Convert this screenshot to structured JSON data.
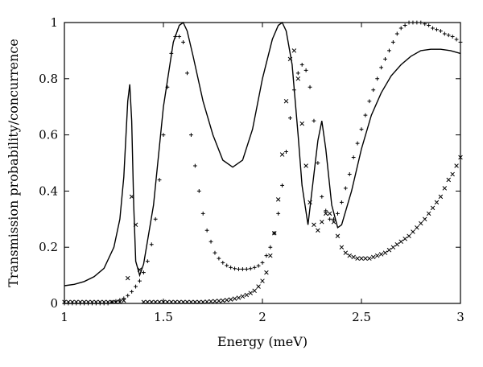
{
  "chart_data": {
    "type": "line",
    "title": "",
    "xlabel": "Energy (meV)",
    "ylabel": "Transmission probability/concurrence",
    "xlim": [
      1,
      3
    ],
    "ylim": [
      0,
      1
    ],
    "xticks": [
      "1",
      "1.5",
      "2",
      "2.5",
      "3"
    ],
    "yticks": [
      "0",
      "0.2",
      "0.4",
      "0.6",
      "0.8",
      "1"
    ],
    "grid": false,
    "legend": "none",
    "series": [
      {
        "marker": "line",
        "x": [
          1.0,
          1.05,
          1.1,
          1.15,
          1.2,
          1.25,
          1.28,
          1.3,
          1.32,
          1.33,
          1.34,
          1.35,
          1.36,
          1.38,
          1.4,
          1.45,
          1.5,
          1.55,
          1.58,
          1.6,
          1.62,
          1.65,
          1.7,
          1.75,
          1.8,
          1.85,
          1.9,
          1.95,
          2.0,
          2.05,
          2.08,
          2.1,
          2.12,
          2.15,
          2.18,
          2.2,
          2.23,
          2.25,
          2.28,
          2.3,
          2.32,
          2.35,
          2.38,
          2.4,
          2.45,
          2.5,
          2.55,
          2.6,
          2.65,
          2.7,
          2.75,
          2.8,
          2.85,
          2.9,
          2.95,
          3.0
        ],
        "y": [
          0.063,
          0.068,
          0.078,
          0.095,
          0.125,
          0.2,
          0.3,
          0.45,
          0.72,
          0.78,
          0.65,
          0.35,
          0.15,
          0.1,
          0.14,
          0.35,
          0.7,
          0.93,
          0.99,
          1.0,
          0.97,
          0.88,
          0.72,
          0.6,
          0.51,
          0.485,
          0.51,
          0.62,
          0.8,
          0.94,
          0.99,
          1.0,
          0.97,
          0.85,
          0.6,
          0.42,
          0.28,
          0.4,
          0.58,
          0.65,
          0.55,
          0.35,
          0.27,
          0.28,
          0.4,
          0.55,
          0.67,
          0.75,
          0.81,
          0.85,
          0.88,
          0.9,
          0.905,
          0.905,
          0.9,
          0.89
        ]
      },
      {
        "marker": "+",
        "x": [
          1.0,
          1.02,
          1.04,
          1.06,
          1.08,
          1.1,
          1.12,
          1.14,
          1.16,
          1.18,
          1.2,
          1.22,
          1.24,
          1.26,
          1.28,
          1.3,
          1.32,
          1.34,
          1.36,
          1.38,
          1.4,
          1.42,
          1.44,
          1.46,
          1.48,
          1.5,
          1.52,
          1.54,
          1.56,
          1.58,
          1.6,
          1.62,
          1.64,
          1.66,
          1.68,
          1.7,
          1.72,
          1.74,
          1.76,
          1.78,
          1.8,
          1.82,
          1.84,
          1.86,
          1.88,
          1.9,
          1.92,
          1.94,
          1.96,
          1.98,
          2.0,
          2.02,
          2.04,
          2.06,
          2.08,
          2.1,
          2.12,
          2.14,
          2.16,
          2.18,
          2.2,
          2.22,
          2.24,
          2.26,
          2.28,
          2.3,
          2.32,
          2.34,
          2.36,
          2.38,
          2.4,
          2.42,
          2.44,
          2.46,
          2.48,
          2.5,
          2.52,
          2.54,
          2.56,
          2.58,
          2.6,
          2.62,
          2.64,
          2.66,
          2.68,
          2.7,
          2.72,
          2.74,
          2.76,
          2.78,
          2.8,
          2.82,
          2.84,
          2.86,
          2.88,
          2.9,
          2.92,
          2.94,
          2.96,
          2.98,
          3.0
        ],
        "y": [
          0.0,
          0.0,
          0.0,
          0.0,
          0.0,
          0.0,
          0.0,
          0.0,
          0.0,
          0.0,
          0.0,
          0.0,
          0.005,
          0.008,
          0.012,
          0.018,
          0.028,
          0.042,
          0.06,
          0.08,
          0.11,
          0.15,
          0.21,
          0.3,
          0.44,
          0.6,
          0.77,
          0.89,
          0.95,
          0.95,
          0.93,
          0.82,
          0.6,
          0.49,
          0.4,
          0.32,
          0.26,
          0.22,
          0.18,
          0.16,
          0.145,
          0.135,
          0.128,
          0.124,
          0.122,
          0.122,
          0.122,
          0.124,
          0.128,
          0.134,
          0.145,
          0.17,
          0.2,
          0.25,
          0.32,
          0.42,
          0.54,
          0.66,
          0.76,
          0.82,
          0.85,
          0.83,
          0.77,
          0.65,
          0.5,
          0.38,
          0.33,
          0.3,
          0.3,
          0.32,
          0.36,
          0.41,
          0.46,
          0.52,
          0.57,
          0.62,
          0.67,
          0.72,
          0.76,
          0.8,
          0.84,
          0.87,
          0.9,
          0.93,
          0.96,
          0.98,
          0.99,
          1.0,
          1.0,
          1.0,
          1.0,
          0.995,
          0.99,
          0.98,
          0.975,
          0.97,
          0.96,
          0.955,
          0.95,
          0.94,
          0.93
        ]
      },
      {
        "marker": "x",
        "x": [
          1.0,
          1.02,
          1.04,
          1.06,
          1.08,
          1.1,
          1.12,
          1.14,
          1.16,
          1.18,
          1.2,
          1.22,
          1.24,
          1.26,
          1.28,
          1.3,
          1.32,
          1.34,
          1.36,
          1.38,
          1.4,
          1.42,
          1.44,
          1.46,
          1.48,
          1.5,
          1.52,
          1.54,
          1.56,
          1.58,
          1.6,
          1.62,
          1.64,
          1.66,
          1.68,
          1.7,
          1.72,
          1.74,
          1.76,
          1.78,
          1.8,
          1.82,
          1.84,
          1.86,
          1.88,
          1.9,
          1.92,
          1.94,
          1.96,
          1.98,
          2.0,
          2.02,
          2.04,
          2.06,
          2.08,
          2.1,
          2.12,
          2.14,
          2.16,
          2.18,
          2.2,
          2.22,
          2.24,
          2.26,
          2.28,
          2.3,
          2.32,
          2.34,
          2.36,
          2.38,
          2.4,
          2.42,
          2.44,
          2.46,
          2.48,
          2.5,
          2.52,
          2.54,
          2.56,
          2.58,
          2.6,
          2.62,
          2.64,
          2.66,
          2.68,
          2.7,
          2.72,
          2.74,
          2.76,
          2.78,
          2.8,
          2.82,
          2.84,
          2.86,
          2.88,
          2.9,
          2.92,
          2.94,
          2.96,
          2.98,
          3.0
        ],
        "y": [
          0.005,
          0.005,
          0.005,
          0.005,
          0.005,
          0.005,
          0.005,
          0.005,
          0.005,
          0.005,
          0.005,
          0.005,
          0.005,
          0.005,
          0.005,
          0.01,
          0.09,
          0.38,
          0.28,
          0.12,
          0.005,
          0.005,
          0.005,
          0.005,
          0.005,
          0.005,
          0.005,
          0.005,
          0.005,
          0.005,
          0.005,
          0.005,
          0.005,
          0.005,
          0.005,
          0.005,
          0.006,
          0.007,
          0.008,
          0.009,
          0.01,
          0.012,
          0.014,
          0.017,
          0.02,
          0.025,
          0.03,
          0.037,
          0.045,
          0.06,
          0.08,
          0.11,
          0.17,
          0.25,
          0.37,
          0.53,
          0.72,
          0.87,
          0.9,
          0.8,
          0.64,
          0.49,
          0.36,
          0.28,
          0.26,
          0.29,
          0.32,
          0.32,
          0.29,
          0.24,
          0.2,
          0.18,
          0.17,
          0.165,
          0.16,
          0.16,
          0.16,
          0.16,
          0.165,
          0.17,
          0.175,
          0.18,
          0.19,
          0.2,
          0.21,
          0.22,
          0.23,
          0.24,
          0.255,
          0.27,
          0.285,
          0.3,
          0.32,
          0.34,
          0.36,
          0.38,
          0.41,
          0.44,
          0.46,
          0.49,
          0.52
        ]
      }
    ]
  }
}
